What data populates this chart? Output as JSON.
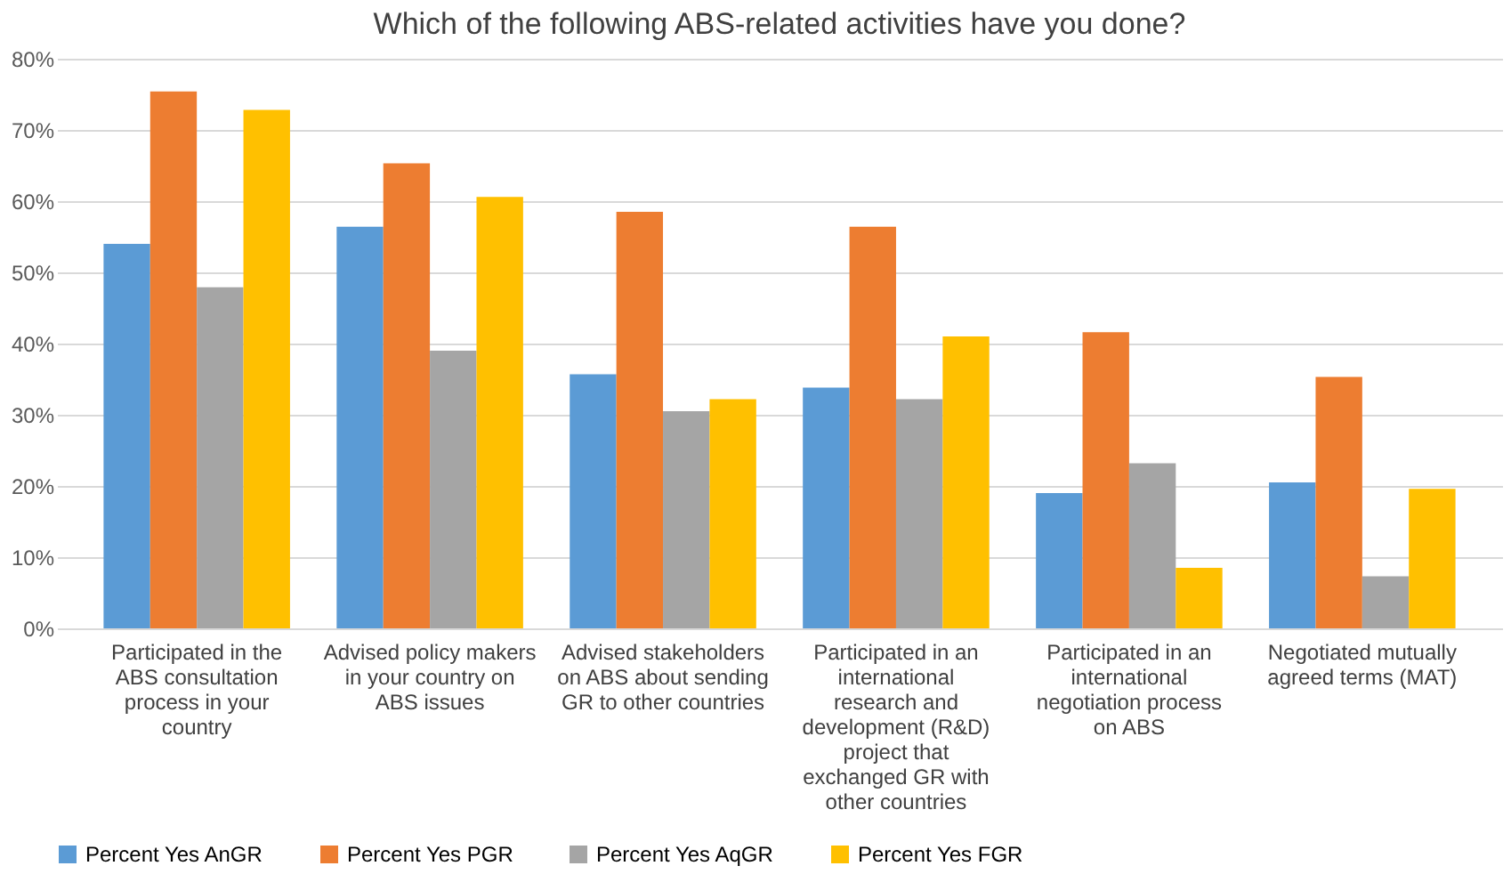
{
  "chart_data": {
    "type": "bar",
    "title": "Which of the following ABS-related activities have you done?",
    "categories": [
      "Participated in the ABS consultation process in your country",
      "Advised policy makers in your country on ABS issues",
      "Advised stakeholders on ABS about sending GR to other countries",
      "Participated in an international research and development (R&D) project that exchanged GR with other countries",
      "Participated in an international negotiation process on ABS",
      "Negotiated mutually agreed terms (MAT)"
    ],
    "series": [
      {
        "name": "Percent Yes AnGR",
        "color": "#5b9bd5",
        "values": [
          54,
          56.4,
          35.7,
          33.8,
          19,
          20.5
        ]
      },
      {
        "name": "Percent Yes PGR",
        "color": "#ed7d31",
        "values": [
          75.4,
          65.3,
          58.5,
          56.4,
          41.6,
          35.3
        ]
      },
      {
        "name": "Percent Yes AqGR",
        "color": "#a5a5a5",
        "values": [
          47.9,
          39,
          30.5,
          32.2,
          23.2,
          7.3
        ]
      },
      {
        "name": "Percent Yes FGR",
        "color": "#ffc000",
        "values": [
          72.8,
          60.6,
          32.2,
          41,
          8.5,
          19.6
        ]
      }
    ],
    "ylim": [
      0,
      80
    ],
    "yticks": [
      {
        "value": 0,
        "label": "0%"
      },
      {
        "value": 10,
        "label": "10%"
      },
      {
        "value": 20,
        "label": "20%"
      },
      {
        "value": 30,
        "label": "30%"
      },
      {
        "value": 40,
        "label": "40%"
      },
      {
        "value": 50,
        "label": "50%"
      },
      {
        "value": 60,
        "label": "60%"
      },
      {
        "value": 70,
        "label": "70%"
      },
      {
        "value": 80,
        "label": "80%"
      }
    ],
    "grid": "y",
    "legend": "bottom"
  }
}
